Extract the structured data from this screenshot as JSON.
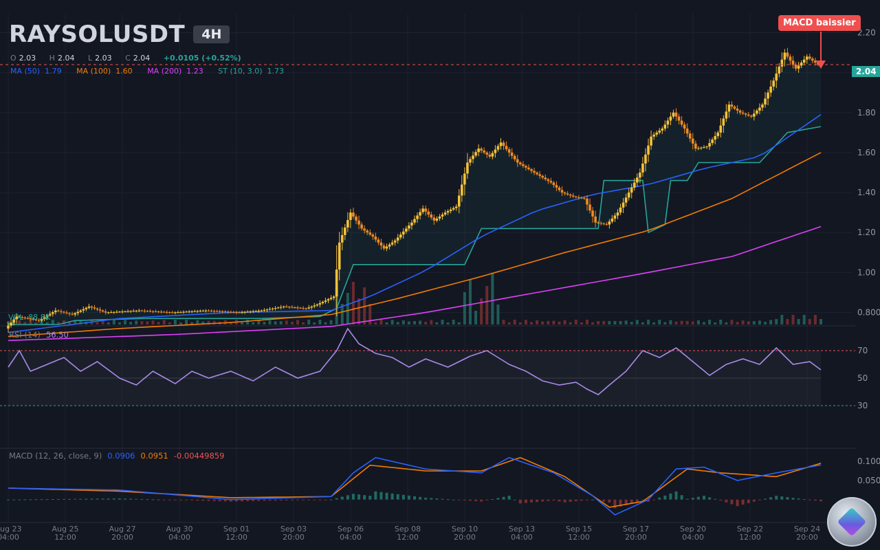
{
  "header": {
    "symbol": "RAYSOLUSDT",
    "timeframe": "4H",
    "ohlc": {
      "o_label": "O",
      "o": "2.03",
      "h_label": "H",
      "h": "2.04",
      "l_label": "L",
      "l": "2.03",
      "c_label": "C",
      "c": "2.04",
      "change": "+0.0105 (+0.52%)"
    },
    "indicators": [
      {
        "label": "MA (50)",
        "value": "1.79",
        "color": "#2962ff"
      },
      {
        "label": "MA (100)",
        "value": "1.60",
        "color": "#f57c00"
      },
      {
        "label": "MA (200)",
        "value": "1.23",
        "color": "#e040fb"
      },
      {
        "label": "ST (10, 3.0)",
        "value": "1.73",
        "color": "#26a69a"
      }
    ]
  },
  "annotation": {
    "text": "MACD baissier",
    "color": "#ef4f4f"
  },
  "last_price_tag": "2.04",
  "volume_label": "VOL",
  "volume_value": "88.8K",
  "rsi_panel": {
    "label": "RSI (14)",
    "value": "56.50"
  },
  "macd_panel": {
    "label": "MACD (12, 26, close, 9)",
    "macd": "0.0906",
    "signal": "0.0951",
    "hist": "-0.00449859"
  },
  "colors": {
    "background": "#131722",
    "up": "#26a69a",
    "down": "#ef5350",
    "candle": "#f5a623",
    "ma50": "#2962ff",
    "ma100": "#f57c00",
    "ma200": "#e040fb",
    "supertrend": "#26a69a",
    "rsi": "#a98be8",
    "macd": "#2962ff",
    "signal": "#f57c00"
  },
  "chart_data": [
    {
      "type": "line",
      "panel": "price",
      "ylim": [
        0.74,
        2.26
      ],
      "yticks": [
        "2.20",
        "2.00",
        "1.80",
        "1.60",
        "1.40",
        "1.20",
        "1.00",
        "0.800"
      ],
      "ytick_values": [
        2.2,
        2.0,
        1.8,
        1.6,
        1.4,
        1.2,
        1.0,
        0.8
      ],
      "xticks": [
        [
          "Aug 23",
          "04:00"
        ],
        [
          "Aug 25",
          "12:00"
        ],
        [
          "Aug 27",
          "20:00"
        ],
        [
          "Aug 30",
          "04:00"
        ],
        [
          "Sep 01",
          "12:00"
        ],
        [
          "Sep 03",
          "20:00"
        ],
        [
          "Sep 06",
          "04:00"
        ],
        [
          "Sep 08",
          "12:00"
        ],
        [
          "Sep 10",
          "20:00"
        ],
        [
          "Sep 13",
          "04:00"
        ],
        [
          "Sep 15",
          "12:00"
        ],
        [
          "Sep 17",
          "20:00"
        ],
        [
          "Sep 20",
          "04:00"
        ],
        [
          "Sep 22",
          "12:00"
        ],
        [
          "Sep 24",
          "20:00"
        ]
      ],
      "price_path": [
        [
          0,
          0.72
        ],
        [
          4,
          0.78
        ],
        [
          12,
          0.76
        ],
        [
          18,
          0.81
        ],
        [
          24,
          0.79
        ],
        [
          30,
          0.83
        ],
        [
          36,
          0.8
        ],
        [
          48,
          0.81
        ],
        [
          60,
          0.8
        ],
        [
          72,
          0.81
        ],
        [
          84,
          0.8
        ],
        [
          92,
          0.81
        ],
        [
          100,
          0.83
        ],
        [
          108,
          0.82
        ],
        [
          112,
          0.84
        ],
        [
          118,
          0.88
        ],
        [
          120,
          1.15
        ],
        [
          124,
          1.3
        ],
        [
          128,
          1.22
        ],
        [
          132,
          1.18
        ],
        [
          136,
          1.12
        ],
        [
          140,
          1.16
        ],
        [
          146,
          1.25
        ],
        [
          150,
          1.32
        ],
        [
          154,
          1.26
        ],
        [
          158,
          1.3
        ],
        [
          162,
          1.33
        ],
        [
          166,
          1.55
        ],
        [
          170,
          1.62
        ],
        [
          174,
          1.58
        ],
        [
          178,
          1.65
        ],
        [
          184,
          1.55
        ],
        [
          190,
          1.5
        ],
        [
          196,
          1.45
        ],
        [
          200,
          1.4
        ],
        [
          204,
          1.38
        ],
        [
          208,
          1.37
        ],
        [
          212,
          1.25
        ],
        [
          216,
          1.24
        ],
        [
          220,
          1.3
        ],
        [
          224,
          1.4
        ],
        [
          228,
          1.5
        ],
        [
          232,
          1.68
        ],
        [
          236,
          1.72
        ],
        [
          240,
          1.8
        ],
        [
          244,
          1.72
        ],
        [
          248,
          1.62
        ],
        [
          252,
          1.63
        ],
        [
          256,
          1.7
        ],
        [
          260,
          1.84
        ],
        [
          264,
          1.8
        ],
        [
          268,
          1.78
        ],
        [
          272,
          1.84
        ],
        [
          276,
          1.96
        ],
        [
          280,
          2.1
        ],
        [
          284,
          2.02
        ],
        [
          288,
          2.08
        ],
        [
          292,
          2.04
        ]
      ],
      "ma50": [
        [
          0,
          0.7
        ],
        [
          40,
          0.77
        ],
        [
          80,
          0.8
        ],
        [
          116,
          0.81
        ],
        [
          130,
          0.88
        ],
        [
          150,
          1.01
        ],
        [
          170,
          1.18
        ],
        [
          190,
          1.31
        ],
        [
          210,
          1.39
        ],
        [
          230,
          1.44
        ],
        [
          250,
          1.52
        ],
        [
          270,
          1.58
        ],
        [
          292,
          1.79
        ]
      ],
      "ma100": [
        [
          0,
          0.68
        ],
        [
          40,
          0.72
        ],
        [
          80,
          0.75
        ],
        [
          116,
          0.79
        ],
        [
          140,
          0.87
        ],
        [
          170,
          0.98
        ],
        [
          200,
          1.1
        ],
        [
          230,
          1.21
        ],
        [
          260,
          1.37
        ],
        [
          292,
          1.6
        ]
      ],
      "ma200": [
        [
          0,
          0.66
        ],
        [
          60,
          0.69
        ],
        [
          116,
          0.73
        ],
        [
          150,
          0.8
        ],
        [
          190,
          0.9
        ],
        [
          230,
          1.0
        ],
        [
          260,
          1.08
        ],
        [
          292,
          1.23
        ]
      ],
      "supertrend": [
        [
          0,
          0.74
        ],
        [
          18,
          0.74
        ],
        [
          24,
          0.76
        ],
        [
          48,
          0.77
        ],
        [
          90,
          0.77
        ],
        [
          112,
          0.78
        ],
        [
          118,
          0.82
        ],
        [
          124,
          1.04
        ],
        [
          164,
          1.04
        ],
        [
          170,
          1.22
        ],
        [
          212,
          1.22
        ],
        [
          214,
          1.46
        ],
        [
          228,
          1.46
        ],
        [
          230,
          1.2
        ],
        [
          236,
          1.24
        ],
        [
          238,
          1.46
        ],
        [
          244,
          1.46
        ],
        [
          248,
          1.55
        ],
        [
          270,
          1.55
        ],
        [
          274,
          1.61
        ],
        [
          280,
          1.7
        ],
        [
          292,
          1.73
        ]
      ],
      "current_price": 2.04
    },
    {
      "type": "line",
      "panel": "rsi",
      "ylim": [
        20,
        80
      ],
      "yticks": [
        "70",
        "50",
        "30"
      ],
      "ytick_values": [
        70,
        50,
        30
      ],
      "values": [
        [
          0,
          58
        ],
        [
          4,
          70
        ],
        [
          8,
          55
        ],
        [
          14,
          60
        ],
        [
          20,
          65
        ],
        [
          26,
          55
        ],
        [
          32,
          62
        ],
        [
          40,
          50
        ],
        [
          46,
          45
        ],
        [
          52,
          55
        ],
        [
          60,
          46
        ],
        [
          66,
          55
        ],
        [
          72,
          50
        ],
        [
          80,
          55
        ],
        [
          88,
          48
        ],
        [
          96,
          58
        ],
        [
          104,
          50
        ],
        [
          112,
          55
        ],
        [
          118,
          70
        ],
        [
          122,
          86
        ],
        [
          126,
          75
        ],
        [
          132,
          68
        ],
        [
          138,
          65
        ],
        [
          144,
          58
        ],
        [
          150,
          64
        ],
        [
          158,
          58
        ],
        [
          166,
          66
        ],
        [
          172,
          70
        ],
        [
          180,
          60
        ],
        [
          186,
          55
        ],
        [
          192,
          48
        ],
        [
          198,
          45
        ],
        [
          204,
          47
        ],
        [
          208,
          42
        ],
        [
          212,
          38
        ],
        [
          216,
          45
        ],
        [
          222,
          55
        ],
        [
          228,
          70
        ],
        [
          234,
          65
        ],
        [
          240,
          72
        ],
        [
          246,
          62
        ],
        [
          252,
          52
        ],
        [
          258,
          60
        ],
        [
          264,
          64
        ],
        [
          270,
          60
        ],
        [
          276,
          72
        ],
        [
          282,
          60
        ],
        [
          288,
          62
        ],
        [
          292,
          56
        ]
      ]
    },
    {
      "type": "bar",
      "panel": "macd",
      "ylim": [
        -0.06,
        0.12
      ],
      "yticks": [
        "0.100",
        "0.050"
      ],
      "ytick_values": [
        0.1,
        0.05
      ],
      "macd": [
        [
          0,
          0.03
        ],
        [
          40,
          0.025
        ],
        [
          80,
          0.0
        ],
        [
          116,
          0.008
        ],
        [
          124,
          0.07
        ],
        [
          132,
          0.11
        ],
        [
          150,
          0.08
        ],
        [
          170,
          0.07
        ],
        [
          180,
          0.11
        ],
        [
          196,
          0.07
        ],
        [
          210,
          0.01
        ],
        [
          218,
          -0.04
        ],
        [
          230,
          0.0
        ],
        [
          240,
          0.08
        ],
        [
          250,
          0.085
        ],
        [
          262,
          0.05
        ],
        [
          276,
          0.07
        ],
        [
          292,
          0.0906
        ]
      ],
      "signal": [
        [
          0,
          0.03
        ],
        [
          40,
          0.022
        ],
        [
          80,
          0.005
        ],
        [
          116,
          0.008
        ],
        [
          130,
          0.09
        ],
        [
          150,
          0.075
        ],
        [
          170,
          0.075
        ],
        [
          184,
          0.11
        ],
        [
          200,
          0.06
        ],
        [
          216,
          -0.02
        ],
        [
          228,
          -0.005
        ],
        [
          244,
          0.08
        ],
        [
          256,
          0.07
        ],
        [
          276,
          0.06
        ],
        [
          292,
          0.0951
        ]
      ]
    }
  ]
}
